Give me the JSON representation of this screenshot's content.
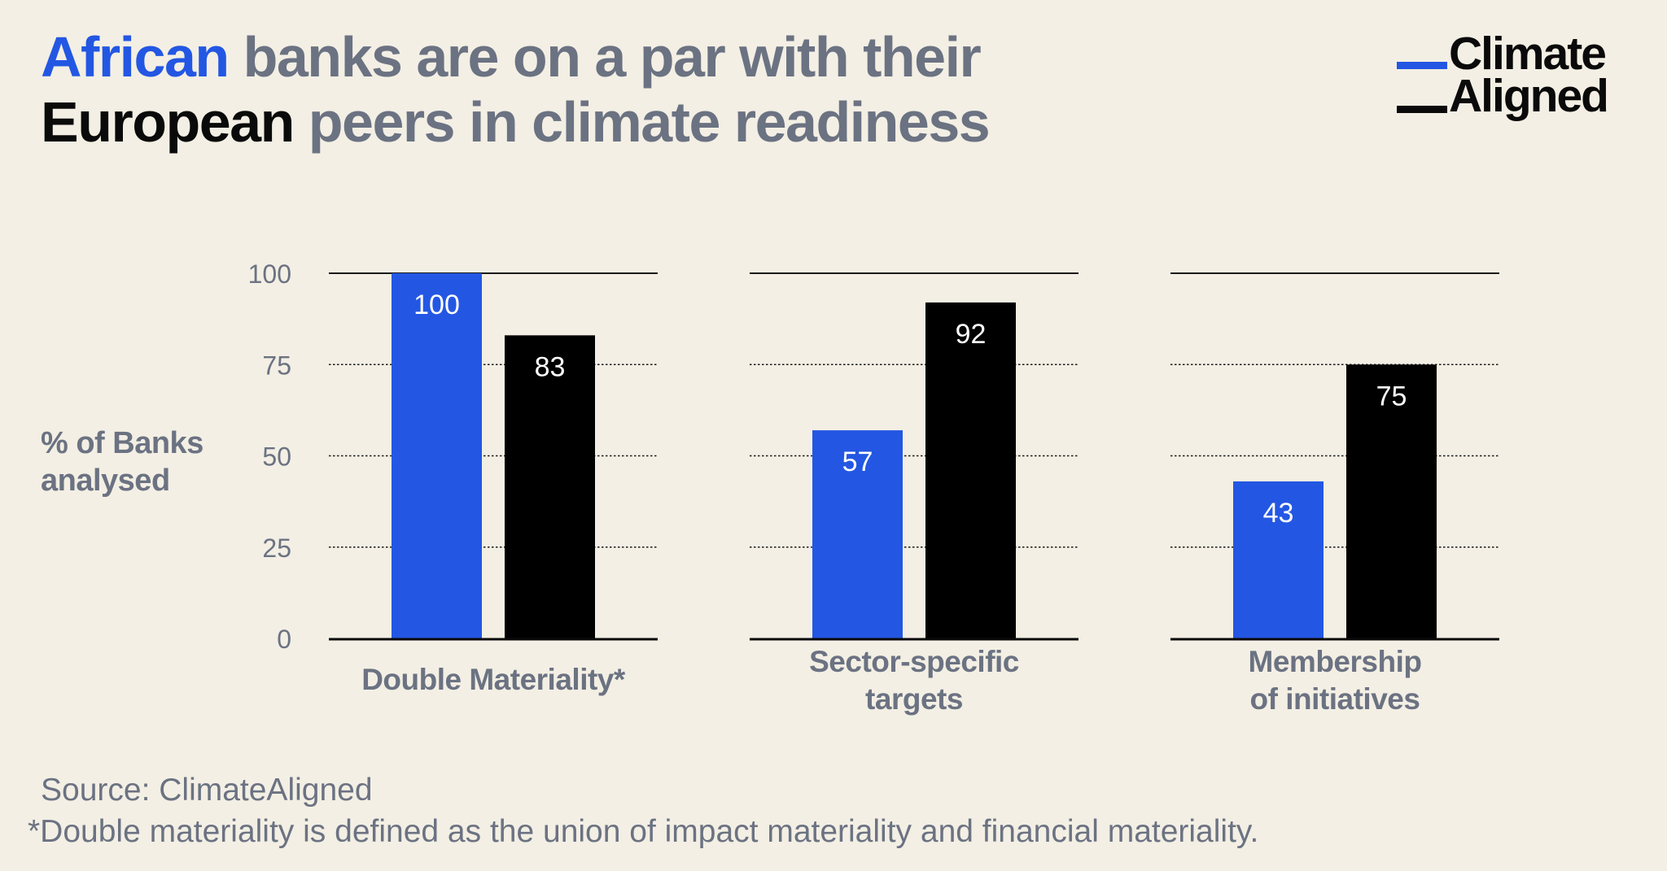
{
  "title": {
    "line1_highlight": "African",
    "line1_rest": " banks are on a par with their",
    "line2_highlight": "European",
    "line2_rest": " peers in climate readiness"
  },
  "logo": {
    "line1": "Climate",
    "line2": "Aligned"
  },
  "colors": {
    "african": "#2357e3",
    "european": "#000000",
    "muted_text": "#6b7282",
    "background": "#f3efe4"
  },
  "chart_data": {
    "type": "bar",
    "title": "African banks are on a par with their European peers in climate readiness",
    "ylabel": "% of Banks analysed",
    "ylim": [
      0,
      100
    ],
    "yticks": [
      0,
      25,
      50,
      75,
      100
    ],
    "grid": true,
    "categories": [
      "Double Materiality*",
      "Sector-specific targets",
      "Membership of initiatives"
    ],
    "category_lines": [
      [
        "Double Materiality*"
      ],
      [
        "Sector-specific",
        "targets"
      ],
      [
        "Membership",
        "of initiatives"
      ]
    ],
    "series": [
      {
        "name": "African banks",
        "color": "#2357e3",
        "values": [
          100,
          57,
          43
        ]
      },
      {
        "name": "European banks",
        "color": "#000000",
        "values": [
          83,
          92,
          75
        ]
      }
    ]
  },
  "source": "Source: ClimateAligned",
  "footnote": "*Double materiality is defined as the union of impact materiality and financial materiality."
}
